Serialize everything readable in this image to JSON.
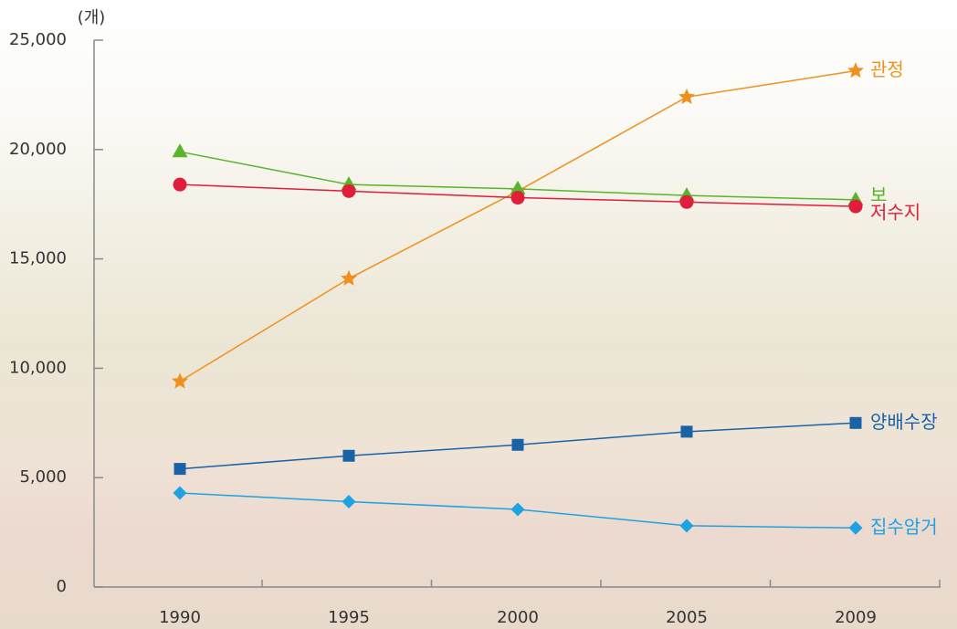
{
  "chart_data": {
    "type": "line",
    "unit_label": "(개)",
    "categories": [
      "1990",
      "1995",
      "2000",
      "2005",
      "2009"
    ],
    "series": [
      {
        "name": "관정",
        "color": "#f0901e",
        "marker": "star",
        "values": [
          9400,
          14100,
          18100,
          22400,
          23600
        ]
      },
      {
        "name": "보",
        "color": "#58b52c",
        "marker": "triangle",
        "values": [
          19900,
          18400,
          18200,
          17900,
          17700
        ]
      },
      {
        "name": "저수지",
        "color": "#e01e3c",
        "marker": "circle",
        "values": [
          18400,
          18100,
          17800,
          17600,
          17400
        ]
      },
      {
        "name": "양배수장",
        "color": "#1a62a6",
        "marker": "square",
        "values": [
          5400,
          6000,
          6500,
          7100,
          7500
        ]
      },
      {
        "name": "집수암거",
        "color": "#1ea2e2",
        "marker": "diamond",
        "values": [
          4300,
          3900,
          3550,
          2800,
          2700
        ]
      }
    ],
    "ylim": [
      0,
      25000
    ],
    "yticks": [
      0,
      {
        "value": 5000,
        "label": "5,000"
      },
      {
        "value": 10000,
        "label": "10,000"
      },
      {
        "value": 15000,
        "label": "15,000"
      },
      {
        "value": 20000,
        "label": "20,000"
      },
      {
        "value": 25000,
        "label": "25,000"
      }
    ],
    "grid": false
  }
}
